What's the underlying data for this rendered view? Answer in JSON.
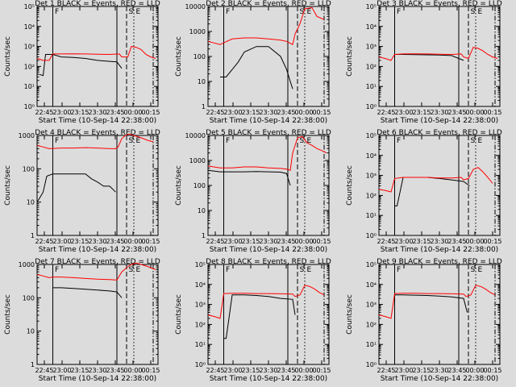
{
  "chart_data": [
    {
      "type": "line",
      "title": "Det 1  BLACK = Events, RED = LLD",
      "ylabel": "Counts/sec",
      "xlabel": "Start Time (10-Sep-14 22:38:00)",
      "yscale": "log",
      "ylim": [
        1,
        100000
      ],
      "ytick_labels": [
        "10⁰",
        "10¹",
        "10²",
        "10³",
        "10⁴",
        "10⁵"
      ],
      "xticks": [
        "22:45",
        "23:00",
        "23:15",
        "23:30",
        "23:45",
        "00:00",
        "00:15"
      ],
      "markers": [
        "F",
        "S",
        "E"
      ],
      "series": [
        {
          "color": "#000000",
          "x": [
            0.02,
            0.05,
            0.07,
            0.13,
            0.2,
            0.3,
            0.4,
            0.5,
            0.6,
            0.66,
            0.7
          ],
          "y": [
            40,
            35,
            400,
            400,
            300,
            280,
            250,
            200,
            180,
            170,
            80
          ]
        },
        {
          "color": "#ff0000",
          "x": [
            0,
            0.05,
            0.1,
            0.13,
            0.2,
            0.3,
            0.4,
            0.5,
            0.6,
            0.68,
            0.7,
            0.75,
            0.78,
            0.82,
            0.86,
            0.9,
            0.94,
            0.98
          ],
          "y": [
            250,
            200,
            200,
            420,
            420,
            430,
            420,
            410,
            400,
            420,
            300,
            300,
            1000,
            900,
            700,
            400,
            300,
            250
          ]
        }
      ]
    },
    {
      "type": "line",
      "title": "Det 2  BLACK = Events, RED = LLD",
      "ylabel": "Counts/sec",
      "xlabel": "Start Time (10-Sep-14 22:38:00)",
      "yscale": "log",
      "ylim": [
        1,
        10000
      ],
      "ytick_labels": [
        "1",
        "10",
        "100",
        "1000",
        "10000"
      ],
      "xticks": [
        "22:45",
        "23:00",
        "23:15",
        "23:30",
        "23:45",
        "00:00",
        "00:15"
      ],
      "markers": [
        "F",
        "S",
        "E"
      ],
      "series": [
        {
          "color": "#000000",
          "x": [
            0.1,
            0.13,
            0.15,
            0.2,
            0.25,
            0.3,
            0.4,
            0.5,
            0.6,
            0.65,
            0.68,
            0.7
          ],
          "y": [
            15,
            15,
            15,
            30,
            60,
            150,
            250,
            250,
            100,
            30,
            10,
            5
          ]
        },
        {
          "color": "#ff0000",
          "x": [
            0,
            0.1,
            0.13,
            0.2,
            0.3,
            0.4,
            0.5,
            0.6,
            0.65,
            0.7,
            0.72,
            0.76,
            0.8,
            0.86,
            0.9,
            0.96
          ],
          "y": [
            400,
            300,
            350,
            500,
            550,
            550,
            500,
            450,
            400,
            300,
            800,
            2000,
            8000,
            9000,
            4000,
            3000
          ]
        }
      ]
    },
    {
      "type": "line",
      "title": "Det 3  BLACK = Events, RED = LLD",
      "ylabel": "Counts/sec",
      "xlabel": "Start Time (10-Sep-14 22:38:00)",
      "yscale": "log",
      "ylim": [
        1,
        100000
      ],
      "ytick_labels": [
        "10⁰",
        "10¹",
        "10²",
        "10³",
        "10⁴",
        "10⁵"
      ],
      "xticks": [
        "22:45",
        "23:00",
        "23:15",
        "23:30",
        "23:45",
        "00:00",
        "00:15"
      ],
      "markers": [
        "F",
        "S",
        "E"
      ],
      "series": [
        {
          "color": "#000000",
          "x": [
            0.13,
            0.2,
            0.3,
            0.4,
            0.5,
            0.6,
            0.7
          ],
          "y": [
            400,
            400,
            390,
            380,
            370,
            350,
            200
          ]
        },
        {
          "color": "#ff0000",
          "x": [
            0,
            0.05,
            0.1,
            0.13,
            0.2,
            0.3,
            0.4,
            0.5,
            0.6,
            0.68,
            0.7,
            0.74,
            0.78,
            0.82,
            0.86,
            0.9,
            0.94,
            0.98
          ],
          "y": [
            300,
            250,
            200,
            400,
            420,
            430,
            420,
            410,
            400,
            420,
            300,
            250,
            900,
            800,
            600,
            400,
            300,
            250
          ]
        }
      ]
    },
    {
      "type": "line",
      "title": "Det 4  BLACK = Events, RED = LLD",
      "ylabel": "Counts/sec",
      "xlabel": "Start Time (10-Sep-14 22:38:00)",
      "yscale": "log",
      "ylim": [
        1,
        1000
      ],
      "ytick_labels": [
        "1",
        "10",
        "100",
        "1000"
      ],
      "xticks": [
        "22:45",
        "23:00",
        "23:15",
        "23:30",
        "23:45",
        "00:00",
        "00:15"
      ],
      "markers": [
        "F",
        "S",
        "E"
      ],
      "series": [
        {
          "color": "#000000",
          "x": [
            0,
            0.03,
            0.05,
            0.08,
            0.13,
            0.2,
            0.3,
            0.4,
            0.45,
            0.5,
            0.55,
            0.6,
            0.65
          ],
          "y": [
            10,
            15,
            20,
            60,
            70,
            70,
            70,
            70,
            50,
            40,
            30,
            30,
            20
          ]
        },
        {
          "color": "#ff0000",
          "x": [
            0,
            0.05,
            0.1,
            0.2,
            0.3,
            0.4,
            0.5,
            0.6,
            0.65,
            0.67,
            0.7,
            0.73,
            0.76,
            0.8,
            0.84,
            0.88,
            0.92,
            0.96
          ],
          "y": [
            500,
            450,
            400,
            420,
            420,
            430,
            420,
            400,
            400,
            450,
            800,
            1000,
            1100,
            1000,
            900,
            800,
            700,
            650
          ]
        }
      ]
    },
    {
      "type": "line",
      "title": "Det 5  BLACK = Events, RED = LLD",
      "ylabel": "Counts/sec",
      "xlabel": "Start Time (10-Sep-14 22:38:00)",
      "yscale": "log",
      "ylim": [
        1,
        10000
      ],
      "ytick_labels": [
        "1",
        "10",
        "100",
        "1000",
        "10000"
      ],
      "xticks": [
        "22:45",
        "23:00",
        "23:15",
        "23:30",
        "23:45",
        "00:00",
        "00:15"
      ],
      "markers": [
        "F",
        "S",
        "E"
      ],
      "series": [
        {
          "color": "#000000",
          "x": [
            0,
            0.1,
            0.2,
            0.3,
            0.4,
            0.5,
            0.6,
            0.65,
            0.68
          ],
          "y": [
            400,
            350,
            350,
            350,
            360,
            350,
            340,
            300,
            100
          ]
        },
        {
          "color": "#ff0000",
          "x": [
            0,
            0.1,
            0.2,
            0.3,
            0.4,
            0.5,
            0.6,
            0.65,
            0.68,
            0.7,
            0.74,
            0.78,
            0.82,
            0.86,
            0.9,
            0.94,
            0.98
          ],
          "y": [
            600,
            500,
            500,
            550,
            550,
            500,
            480,
            450,
            400,
            2000,
            8000,
            9000,
            5000,
            4000,
            3000,
            2500,
            2000
          ]
        }
      ]
    },
    {
      "type": "line",
      "title": "Det 6  BLACK = Events, RED = LLD",
      "ylabel": "Counts/sec",
      "xlabel": "Start Time (10-Sep-14 22:38:00)",
      "yscale": "log",
      "ylim": [
        1,
        100000
      ],
      "ytick_labels": [
        "10⁰",
        "10¹",
        "10²",
        "10³",
        "10⁴",
        "10⁵"
      ],
      "xticks": [
        "22:45",
        "23:00",
        "23:15",
        "23:30",
        "23:45",
        "00:00",
        "00:15"
      ],
      "markers": [
        "F",
        "S",
        "E"
      ],
      "series": [
        {
          "color": "#000000",
          "x": [
            0.13,
            0.15,
            0.2,
            0.3,
            0.4,
            0.5,
            0.6,
            0.7,
            0.75
          ],
          "y": [
            30,
            30,
            800,
            800,
            800,
            700,
            600,
            500,
            300
          ]
        },
        {
          "color": "#ff0000",
          "x": [
            0,
            0.05,
            0.1,
            0.13,
            0.2,
            0.3,
            0.4,
            0.5,
            0.6,
            0.68,
            0.7,
            0.74,
            0.78,
            0.82,
            0.86,
            0.9,
            0.94
          ],
          "y": [
            200,
            180,
            150,
            700,
            800,
            800,
            800,
            750,
            750,
            800,
            600,
            700,
            2000,
            2500,
            1500,
            800,
            400
          ]
        }
      ]
    },
    {
      "type": "line",
      "title": "Det 7  BLACK = Events, RED = LLD",
      "ylabel": "Counts/sec",
      "xlabel": "Start Time (10-Sep-14 22:38:00)",
      "yscale": "log",
      "ylim": [
        1,
        1000
      ],
      "ytick_labels": [
        "1",
        "10",
        "100",
        "1000"
      ],
      "xticks": [
        "22:45",
        "23:00",
        "23:15",
        "23:30",
        "23:45",
        "00:00",
        "00:15"
      ],
      "markers": [
        "F",
        "S",
        "E"
      ],
      "series": [
        {
          "color": "#000000",
          "x": [
            0.13,
            0.2,
            0.3,
            0.4,
            0.5,
            0.6,
            0.66,
            0.7
          ],
          "y": [
            200,
            200,
            190,
            180,
            170,
            160,
            150,
            100
          ]
        },
        {
          "color": "#ff0000",
          "x": [
            0,
            0.05,
            0.1,
            0.13,
            0.2,
            0.3,
            0.4,
            0.5,
            0.6,
            0.66,
            0.7,
            0.74,
            0.78,
            0.82,
            0.86,
            0.9,
            0.94,
            0.98
          ],
          "y": [
            500,
            450,
            400,
            420,
            420,
            400,
            380,
            360,
            350,
            340,
            600,
            800,
            1000,
            1100,
            1000,
            900,
            800,
            700
          ]
        }
      ]
    },
    {
      "type": "line",
      "title": "Det 8  BLACK = Events, RED = LLD",
      "ylabel": "Counts/sec",
      "xlabel": "Start Time (10-Sep-14 22:38:00)",
      "yscale": "log",
      "ylim": [
        1,
        100000
      ],
      "ytick_labels": [
        "10⁰",
        "10¹",
        "10²",
        "10³",
        "10⁴",
        "10⁵"
      ],
      "xticks": [
        "22:45",
        "23:00",
        "23:15",
        "23:30",
        "23:45",
        "00:00",
        "00:15"
      ],
      "markers": [
        "F",
        "S",
        "E"
      ],
      "series": [
        {
          "color": "#000000",
          "x": [
            0.13,
            0.15,
            0.2,
            0.3,
            0.4,
            0.5,
            0.6,
            0.7,
            0.72
          ],
          "y": [
            20,
            20,
            3000,
            3000,
            2800,
            2500,
            2000,
            1800,
            300
          ]
        },
        {
          "color": "#ff0000",
          "x": [
            0,
            0.05,
            0.1,
            0.13,
            0.2,
            0.3,
            0.4,
            0.5,
            0.6,
            0.7,
            0.72,
            0.76,
            0.8,
            0.84,
            0.88,
            0.92,
            0.96
          ],
          "y": [
            300,
            250,
            200,
            3500,
            3600,
            3600,
            3500,
            3500,
            3400,
            3300,
            2500,
            3000,
            9000,
            8000,
            6000,
            4000,
            3000
          ]
        }
      ]
    },
    {
      "type": "line",
      "title": "Det 9  BLACK = Events, RED = LLD",
      "ylabel": "Counts/sec",
      "xlabel": "Start Time (10-Sep-14 22:38:00)",
      "yscale": "log",
      "ylim": [
        1,
        100000
      ],
      "ytick_labels": [
        "10⁰",
        "10¹",
        "10²",
        "10³",
        "10⁴",
        "10⁵"
      ],
      "xticks": [
        "22:45",
        "23:00",
        "23:15",
        "23:30",
        "23:45",
        "00:00",
        "00:15"
      ],
      "markers": [
        "F",
        "S",
        "E"
      ],
      "series": [
        {
          "color": "#000000",
          "x": [
            0.13,
            0.2,
            0.3,
            0.4,
            0.5,
            0.6,
            0.7,
            0.73
          ],
          "y": [
            3000,
            3000,
            2900,
            2800,
            2600,
            2400,
            2000,
            400
          ]
        },
        {
          "color": "#ff0000",
          "x": [
            0,
            0.05,
            0.1,
            0.13,
            0.2,
            0.3,
            0.4,
            0.5,
            0.6,
            0.7,
            0.72,
            0.76,
            0.8,
            0.84,
            0.88,
            0.92,
            0.96
          ],
          "y": [
            300,
            250,
            200,
            3500,
            3600,
            3600,
            3500,
            3500,
            3400,
            3300,
            2500,
            3000,
            9000,
            8000,
            6000,
            4000,
            3000
          ]
        }
      ]
    }
  ]
}
